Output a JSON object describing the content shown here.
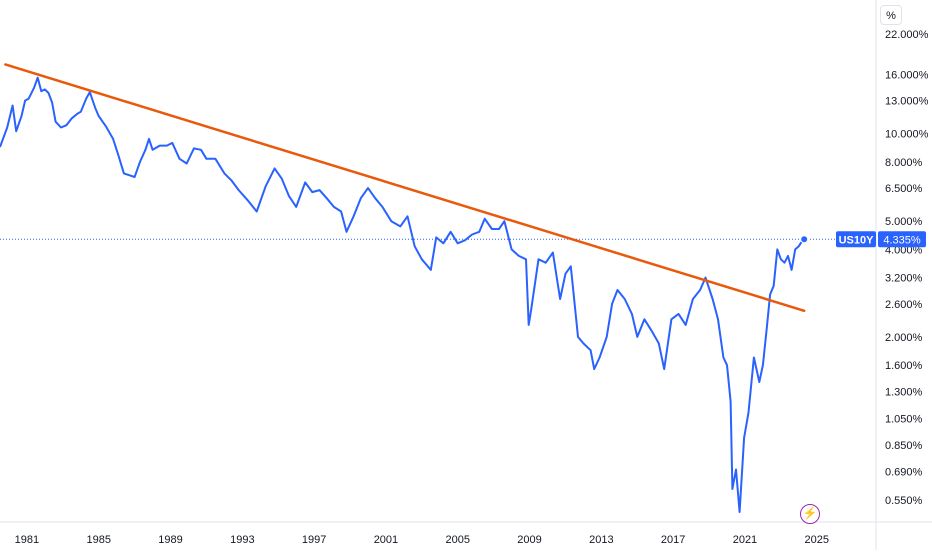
{
  "unit_button": "%",
  "flash_icon": "lightning-bolt-icon",
  "colors": {
    "line": "#2962ff",
    "trendline": "#e8590c",
    "axis_text": "#131722",
    "label_bg": "#2962ff"
  },
  "chart_data": {
    "type": "line",
    "title": "",
    "xlabel": "",
    "ylabel": "",
    "yscale": "log",
    "ylim": [
      0.5,
      25
    ],
    "xlim": [
      1979.5,
      2028.3
    ],
    "x_ticks": [
      "1981",
      "1985",
      "1989",
      "1993",
      "1997",
      "2001",
      "2005",
      "2009",
      "2013",
      "2017",
      "2021",
      "2025"
    ],
    "y_ticks": [
      "22.000%",
      "16.000%",
      "13.000%",
      "10.000%",
      "8.000%",
      "6.500%",
      "5.000%",
      "4.000%",
      "3.200%",
      "2.600%",
      "2.000%",
      "1.600%",
      "1.300%",
      "1.050%",
      "0.850%",
      "0.690%",
      "0.550%"
    ],
    "last_value_label": {
      "symbol": "US10Y",
      "value": "4.335%",
      "y": 4.335
    },
    "grid": false,
    "series": [
      {
        "name": "US10Y",
        "x": [
          1979.5,
          1979.9,
          1980.2,
          1980.4,
          1980.7,
          1980.9,
          1981.1,
          1981.4,
          1981.6,
          1981.8,
          1982.0,
          1982.2,
          1982.4,
          1982.6,
          1982.9,
          1983.2,
          1983.5,
          1983.8,
          1984.0,
          1984.3,
          1984.5,
          1984.8,
          1985.0,
          1985.4,
          1985.8,
          1986.1,
          1986.4,
          1986.7,
          1987.0,
          1987.3,
          1987.6,
          1987.8,
          1988.0,
          1988.4,
          1988.8,
          1989.1,
          1989.5,
          1989.9,
          1990.3,
          1990.7,
          1991.0,
          1991.5,
          1992.0,
          1992.4,
          1992.8,
          1993.3,
          1993.8,
          1994.3,
          1994.8,
          1995.2,
          1995.6,
          1996.0,
          1996.5,
          1996.9,
          1997.3,
          1997.7,
          1998.1,
          1998.5,
          1998.8,
          1999.2,
          1999.6,
          2000.0,
          2000.4,
          2000.8,
          2001.3,
          2001.8,
          2002.2,
          2002.6,
          2003.0,
          2003.5,
          2003.8,
          2004.2,
          2004.6,
          2005.0,
          2005.4,
          2005.8,
          2006.2,
          2006.5,
          2006.9,
          2007.3,
          2007.6,
          2008.0,
          2008.4,
          2008.8,
          2008.95,
          2009.1,
          2009.5,
          2009.9,
          2010.3,
          2010.7,
          2011.0,
          2011.3,
          2011.7,
          2012.0,
          2012.4,
          2012.6,
          2012.9,
          2013.3,
          2013.6,
          2013.9,
          2014.3,
          2014.7,
          2015.0,
          2015.4,
          2015.8,
          2016.2,
          2016.5,
          2016.9,
          2017.3,
          2017.7,
          2018.1,
          2018.5,
          2018.8,
          2019.2,
          2019.5,
          2019.8,
          2020.0,
          2020.2,
          2020.3,
          2020.5,
          2020.7,
          2020.95,
          2021.2,
          2021.5,
          2021.8,
          2022.0,
          2022.2,
          2022.4,
          2022.6,
          2022.8,
          2023.0,
          2023.2,
          2023.4,
          2023.6,
          2023.8,
          2024.0,
          2024.1,
          2024.3
        ],
        "values": [
          9.0,
          10.5,
          12.5,
          10.2,
          11.5,
          13.0,
          13.2,
          14.4,
          15.6,
          14.0,
          14.2,
          13.8,
          12.8,
          11.0,
          10.5,
          10.7,
          11.3,
          11.7,
          11.9,
          13.2,
          13.9,
          12.3,
          11.5,
          10.6,
          9.6,
          8.4,
          7.3,
          7.2,
          7.1,
          8.0,
          8.8,
          9.6,
          8.8,
          9.1,
          9.1,
          9.3,
          8.2,
          7.9,
          8.9,
          8.8,
          8.2,
          8.2,
          7.3,
          6.9,
          6.4,
          5.9,
          5.4,
          6.6,
          7.6,
          7.0,
          6.1,
          5.6,
          6.8,
          6.3,
          6.4,
          6.0,
          5.6,
          5.4,
          4.6,
          5.2,
          6.0,
          6.5,
          6.0,
          5.6,
          5.0,
          4.8,
          5.2,
          4.1,
          3.7,
          3.4,
          4.4,
          4.2,
          4.6,
          4.2,
          4.3,
          4.5,
          4.6,
          5.1,
          4.7,
          4.7,
          5.0,
          4.0,
          3.8,
          3.7,
          2.2,
          2.5,
          3.7,
          3.6,
          3.9,
          2.7,
          3.3,
          3.5,
          2.0,
          1.9,
          1.8,
          1.55,
          1.7,
          2.0,
          2.6,
          2.9,
          2.7,
          2.4,
          2.0,
          2.3,
          2.1,
          1.9,
          1.55,
          2.3,
          2.4,
          2.2,
          2.7,
          2.9,
          3.2,
          2.7,
          2.3,
          1.7,
          1.6,
          1.2,
          0.6,
          0.7,
          0.5,
          0.9,
          1.1,
          1.7,
          1.4,
          1.6,
          2.1,
          2.8,
          3.0,
          4.0,
          3.7,
          3.6,
          3.8,
          3.4,
          4.0,
          4.1,
          4.2,
          4.335
        ]
      },
      {
        "name": "Trendline",
        "x": [
          1979.8,
          2024.3
        ],
        "values": [
          17.3,
          2.46
        ]
      }
    ]
  }
}
